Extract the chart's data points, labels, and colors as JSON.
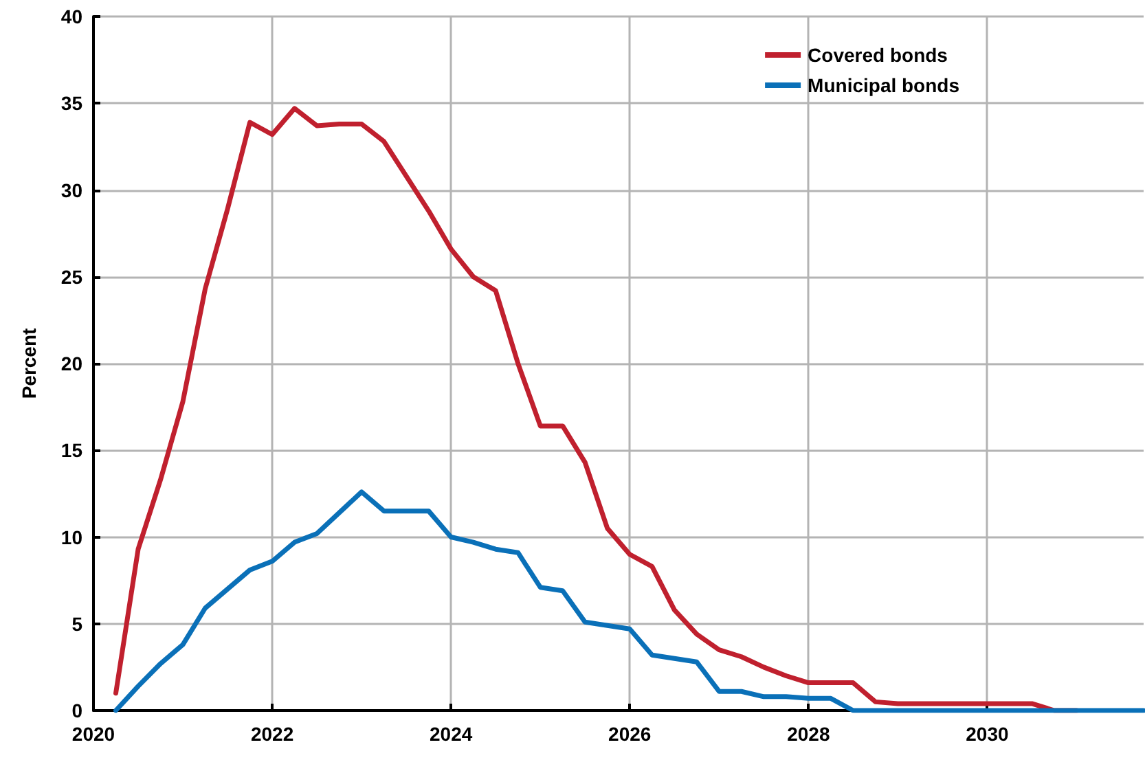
{
  "chart_data": {
    "type": "line",
    "ylabel": "Percent",
    "x": [
      2020.25,
      2020.5,
      2020.75,
      2021,
      2021.25,
      2021.5,
      2021.75,
      2022,
      2022.25,
      2022.5,
      2022.75,
      2023,
      2023.25,
      2023.5,
      2023.75,
      2024,
      2024.25,
      2024.5,
      2024.75,
      2025,
      2025.25,
      2025.5,
      2025.75,
      2026,
      2026.25,
      2026.5,
      2026.75,
      2027,
      2027.25,
      2027.5,
      2027.75,
      2028,
      2028.25,
      2028.5,
      2028.75,
      2029,
      2029.25,
      2029.5,
      2029.75,
      2030,
      2030.25,
      2030.5,
      2030.75,
      2031,
      2031.25,
      2031.5,
      2031.75
    ],
    "series": [
      {
        "name": "Covered bonds",
        "color": "#c0202e",
        "values": [
          1.0,
          9.3,
          13.3,
          17.8,
          24.3,
          28.9,
          33.9,
          33.2,
          34.7,
          33.7,
          33.8,
          33.8,
          32.8,
          30.8,
          28.8,
          26.6,
          25.0,
          24.2,
          20.0,
          16.4,
          16.4,
          14.3,
          10.5,
          9.0,
          8.3,
          5.8,
          4.4,
          3.5,
          3.1,
          2.5,
          2.0,
          1.6,
          1.6,
          1.6,
          0.5,
          0.4,
          0.4,
          0.4,
          0.4,
          0.4,
          0.4,
          0.4,
          0,
          0,
          null,
          null,
          null
        ]
      },
      {
        "name": "Municipal bonds",
        "color": "#0a70b8",
        "values": [
          0,
          1.4,
          2.7,
          3.8,
          5.9,
          7.0,
          8.1,
          8.6,
          9.7,
          10.2,
          11.4,
          12.6,
          11.5,
          11.5,
          11.5,
          10.0,
          9.7,
          9.3,
          9.1,
          7.1,
          6.9,
          5.1,
          4.9,
          4.7,
          3.2,
          3.0,
          2.8,
          1.1,
          1.1,
          0.8,
          0.8,
          0.7,
          0.7,
          0,
          0,
          0,
          0,
          0,
          0,
          0,
          0,
          0,
          0,
          0,
          0,
          0,
          0
        ]
      }
    ],
    "xlim": [
      2020,
      2031.75
    ],
    "xticks": [
      2020,
      2022,
      2024,
      2026,
      2028,
      2030
    ],
    "ylim": [
      0,
      40
    ],
    "yticks": [
      0,
      5,
      10,
      15,
      20,
      25,
      30,
      35,
      40
    ],
    "grid": true,
    "legend": "top right",
    "marker": "none",
    "line_style": "solid"
  }
}
